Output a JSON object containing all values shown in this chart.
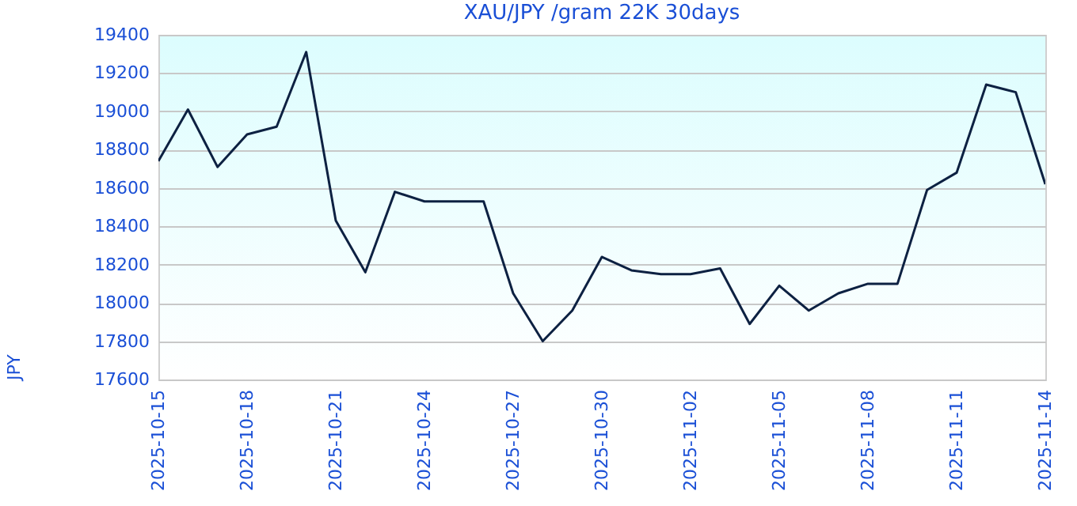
{
  "chart_data": {
    "type": "line",
    "title": "XAU/JPY /gram 22K 30days",
    "ylabel": "JPY",
    "x": [
      "2025-10-15",
      "2025-10-16",
      "2025-10-17",
      "2025-10-18",
      "2025-10-19",
      "2025-10-20",
      "2025-10-21",
      "2025-10-22",
      "2025-10-23",
      "2025-10-24",
      "2025-10-25",
      "2025-10-26",
      "2025-10-27",
      "2025-10-28",
      "2025-10-29",
      "2025-10-30",
      "2025-10-31",
      "2025-11-01",
      "2025-11-02",
      "2025-11-03",
      "2025-11-04",
      "2025-11-05",
      "2025-11-06",
      "2025-11-07",
      "2025-11-08",
      "2025-11-09",
      "2025-11-10",
      "2025-11-11",
      "2025-11-12",
      "2025-11-13",
      "2025-11-14"
    ],
    "series": [
      {
        "color": "#0d2142",
        "values": [
          18740,
          19010,
          18710,
          18880,
          18920,
          19310,
          18430,
          18160,
          18580,
          18530,
          18530,
          18530,
          18050,
          17800,
          17960,
          18240,
          18170,
          18150,
          18150,
          18180,
          17890,
          18090,
          17960,
          18050,
          18100,
          18100,
          18590,
          18680,
          19140,
          19100,
          18620
        ]
      }
    ],
    "xlim": [
      "2025-10-15",
      "2025-11-14"
    ],
    "xticks": [
      "2025-10-15",
      "2025-10-18",
      "2025-10-21",
      "2025-10-24",
      "2025-10-27",
      "2025-10-30",
      "2025-11-02",
      "2025-11-05",
      "2025-11-08",
      "2025-11-11",
      "2025-11-14"
    ],
    "ylim": [
      17600,
      19400
    ],
    "yticks": [
      17600,
      17800,
      18000,
      18200,
      18400,
      18600,
      18800,
      19000,
      19200,
      19400
    ],
    "grid": "y",
    "legend": false,
    "marker": "none",
    "line_style": "solid"
  }
}
